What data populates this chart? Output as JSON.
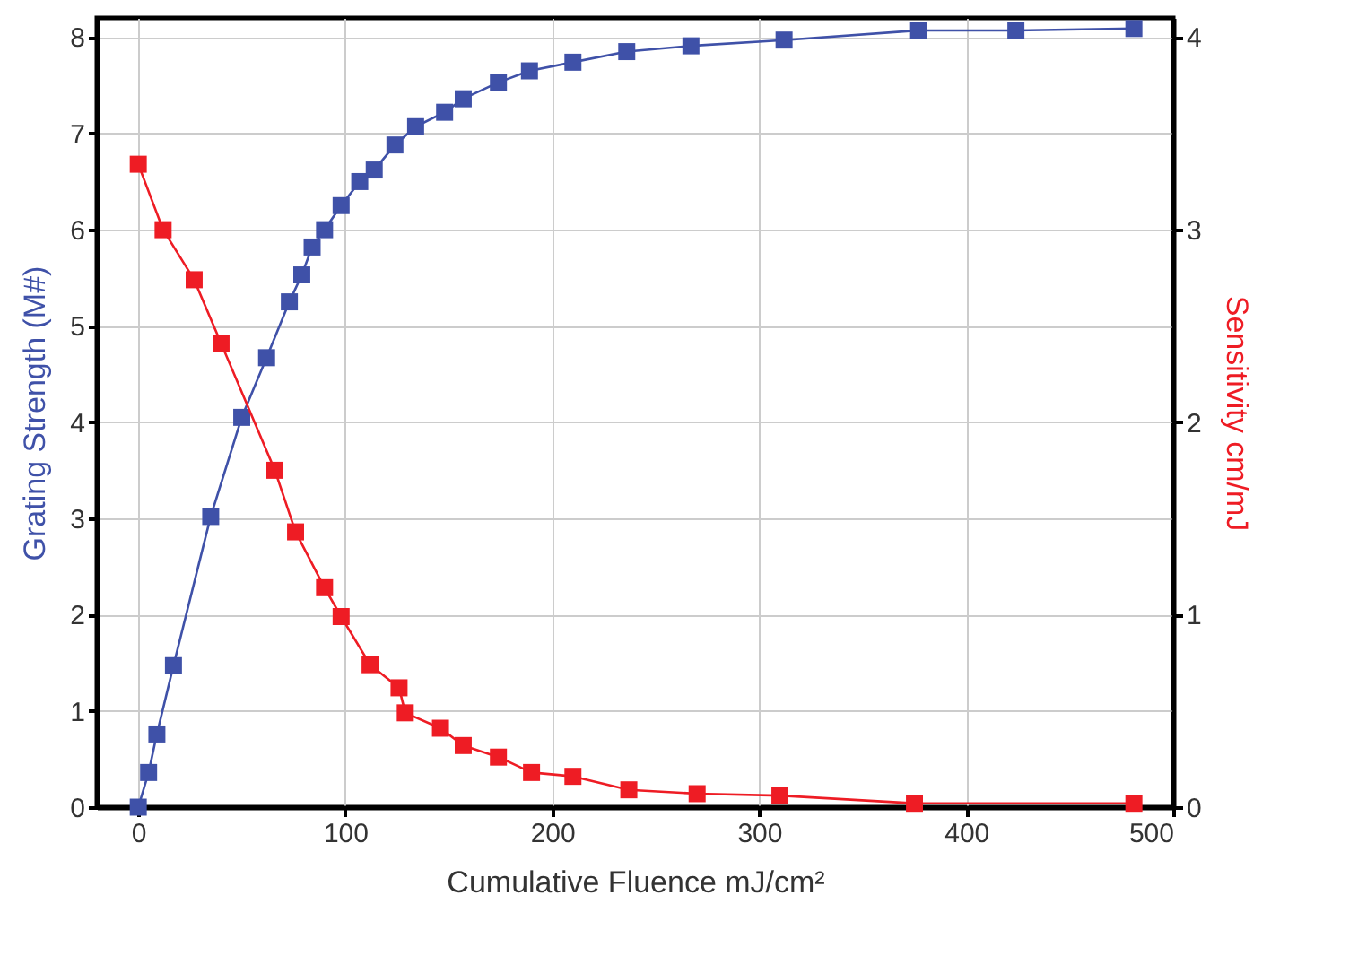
{
  "chart_data": {
    "type": "line",
    "xlabel": "Cumulative Fluence mJ/cm²",
    "ylabel": "Grating Strength (M#)",
    "y2label": "Sensitivity cm/mJ",
    "xlim": [
      -20,
      500
    ],
    "xticks": [
      0,
      100,
      200,
      300,
      400,
      500
    ],
    "ylim": [
      0,
      8.2
    ],
    "yticks": [
      0,
      1,
      2,
      3,
      4,
      5,
      6,
      7,
      8
    ],
    "y2lim": [
      0,
      4.1
    ],
    "y2ticks": [
      0,
      1,
      2,
      3,
      4
    ],
    "grid": true,
    "marker": "square",
    "line_style": "solid",
    "series": [
      {
        "color": "#3f51a8",
        "x": [
          0,
          5,
          9,
          17,
          35,
          50,
          62,
          73,
          79,
          84,
          90,
          98,
          107,
          114,
          124,
          134,
          148,
          157,
          174,
          189,
          210,
          236,
          267,
          312,
          377,
          424,
          481
        ],
        "values": [
          0,
          0.36,
          0.76,
          1.47,
          3.02,
          4.05,
          4.67,
          5.25,
          5.53,
          5.82,
          6.0,
          6.25,
          6.5,
          6.62,
          6.88,
          7.07,
          7.22,
          7.36,
          7.53,
          7.65,
          7.74,
          7.85,
          7.91,
          7.97,
          8.07,
          8.07,
          8.09
        ]
      },
      {
        "color": "#ee1c24",
        "axis": "y2",
        "x": [
          0,
          12,
          27,
          40,
          66,
          76,
          90,
          98,
          112,
          126,
          129,
          146,
          157,
          174,
          190,
          210,
          237,
          270,
          310,
          375,
          481
        ],
        "values": [
          3.34,
          3.0,
          2.74,
          2.41,
          1.75,
          1.43,
          1.14,
          0.99,
          0.74,
          0.62,
          0.49,
          0.41,
          0.32,
          0.26,
          0.18,
          0.16,
          0.09,
          0.07,
          0.06,
          0.02,
          0.02
        ]
      }
    ]
  }
}
